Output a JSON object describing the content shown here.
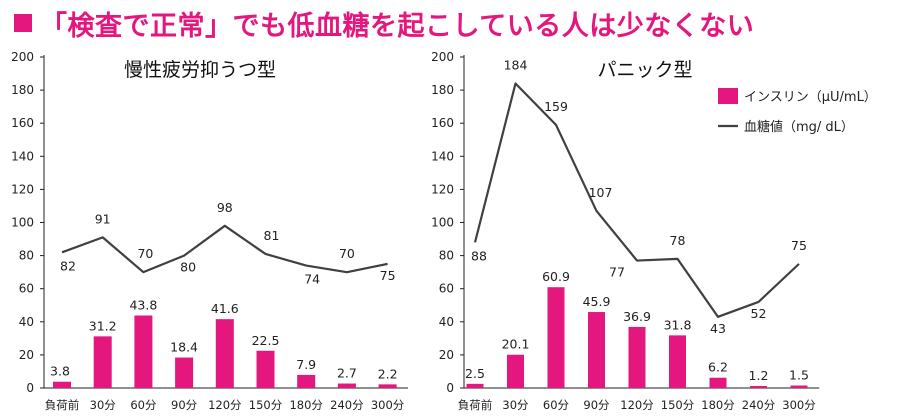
{
  "headline": {
    "text": "「検査で正常」でも低血糖を起こしている人は少なくない"
  },
  "colors": {
    "accent": "#e3177e",
    "bar": "#e3177e",
    "line": "#404040"
  },
  "legend": {
    "insulin_label": "インスリン（μU/mL）",
    "glucose_label": "血糖値（mg/ dL）"
  },
  "chart_data": [
    {
      "type": "bar",
      "title": "慢性疲労抑うつ型",
      "categories": [
        "負荷前",
        "30分",
        "60分",
        "90分",
        "120分",
        "150分",
        "180分",
        "240分",
        "300分"
      ],
      "ylim": [
        0,
        200
      ],
      "yticks": [
        "0",
        "20",
        "40",
        "60",
        "80",
        "100",
        "120",
        "140",
        "160",
        "180",
        "200"
      ],
      "series": [
        {
          "name": "インスリン（μU/mL）",
          "kind": "bar",
          "values": [
            3.8,
            31.2,
            43.8,
            18.4,
            41.6,
            22.5,
            7.9,
            2.7,
            2.2
          ],
          "labels": [
            "3.8",
            "31.2",
            "43.8",
            "18.4",
            "41.6",
            "22.5",
            "7.9",
            "2.7",
            "2.2"
          ]
        },
        {
          "name": "血糖値（mg/ dL）",
          "kind": "line",
          "values": [
            82,
            91,
            70,
            80,
            98,
            81,
            74,
            70,
            75
          ],
          "labels": [
            "82",
            "91",
            "70",
            "80",
            "98",
            "81",
            "74",
            "70",
            "75"
          ]
        }
      ],
      "grid": false,
      "legend": "none"
    },
    {
      "type": "bar",
      "title": "パニック型",
      "categories": [
        "負荷前",
        "30分",
        "60分",
        "90分",
        "120分",
        "150分",
        "180分",
        "240分",
        "300分"
      ],
      "ylim": [
        0,
        200
      ],
      "yticks": [
        "0",
        "20",
        "40",
        "60",
        "80",
        "100",
        "120",
        "140",
        "160",
        "180",
        "200"
      ],
      "series": [
        {
          "name": "インスリン（μU/mL）",
          "kind": "bar",
          "values": [
            2.5,
            20.1,
            60.9,
            45.9,
            36.9,
            31.8,
            6.2,
            1.2,
            1.5
          ],
          "labels": [
            "2.5",
            "20.1",
            "60.9",
            "45.9",
            "36.9",
            "31.8",
            "6.2",
            "1.2",
            "1.5"
          ]
        },
        {
          "name": "血糖値（mg/ dL）",
          "kind": "line",
          "values": [
            88,
            184,
            159,
            107,
            77,
            78,
            43,
            52,
            75
          ],
          "labels": [
            "88",
            "184",
            "159",
            "107",
            "77",
            "78",
            "43",
            "52",
            "75"
          ]
        }
      ],
      "grid": false,
      "legend": "top-right"
    }
  ]
}
